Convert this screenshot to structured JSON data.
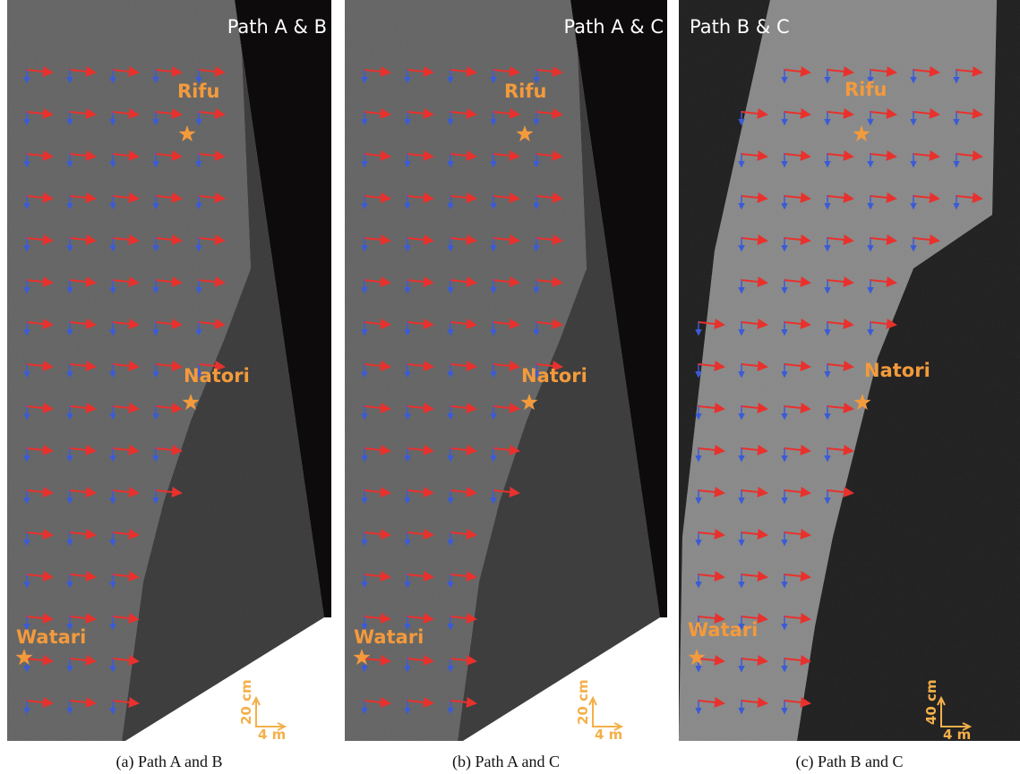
{
  "panels": [
    {
      "title": "Path A & B",
      "places": [
        "Rifu",
        "Natori",
        "Watari"
      ],
      "scale": {
        "vertical": "20 cm",
        "horizontal": "4 m"
      },
      "caption": "(a) Path A and B"
    },
    {
      "title": "Path A & C",
      "places": [
        "Rifu",
        "Natori",
        "Watari"
      ],
      "scale": {
        "vertical": "20 cm",
        "horizontal": "4 m"
      },
      "caption": "(b) Path A and C"
    },
    {
      "title": "Path B & C",
      "places": [
        "Rifu",
        "Natori",
        "Watari"
      ],
      "scale": {
        "vertical": "40 cm",
        "horizontal": "4 m"
      },
      "caption": "(c) Path B and C"
    }
  ]
}
